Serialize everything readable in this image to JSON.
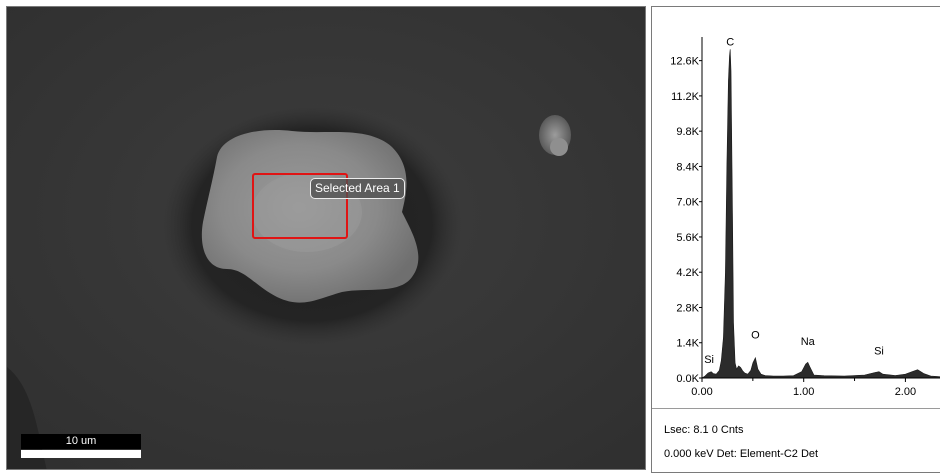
{
  "sem_image": {
    "selection_label": "Selected Area 1",
    "scale_label": "10 um",
    "colors": {
      "selection_box": "#e01414",
      "background": "#3a3a3a",
      "particle": "#8c8c8c"
    }
  },
  "spectrum": {
    "footer": {
      "line1": "Lsec: 8.1 0 Cnts",
      "line2": "0.000 keV Det: Element-C2 Det"
    },
    "colors": {
      "fill": "#2b2b2b",
      "axis": "#000000",
      "footer_border": "#9a9a9a"
    }
  },
  "chart_data": {
    "type": "area",
    "title": "",
    "xlabel": "",
    "ylabel": "",
    "xlim": [
      0.0,
      2.35
    ],
    "ylim": [
      0,
      13300
    ],
    "x_ticks": [
      0.0,
      1.0,
      2.0
    ],
    "x_tick_labels": [
      "0.00",
      "1.00",
      "2.00"
    ],
    "y_ticks": [
      0,
      1400,
      2800,
      4200,
      5600,
      7000,
      8400,
      9800,
      11200,
      12600
    ],
    "y_tick_labels": [
      "0.0K",
      "1.4K",
      "2.8K",
      "4.2K",
      "5.6K",
      "7.0K",
      "8.4K",
      "9.8K",
      "11.2K",
      "12.6K"
    ],
    "peak_labels": [
      {
        "text": "C",
        "x": 0.277,
        "y": 13050
      },
      {
        "text": "O",
        "x": 0.525,
        "y": 1400
      },
      {
        "text": "Na",
        "x": 1.04,
        "y": 1150
      },
      {
        "text": "Si",
        "x": 1.74,
        "y": 780
      },
      {
        "text": "Si",
        "x": 0.07,
        "y": 430
      }
    ],
    "series": [
      {
        "values_x": [
          0.0,
          0.03,
          0.06,
          0.09,
          0.11,
          0.14,
          0.17,
          0.19,
          0.21,
          0.23,
          0.245,
          0.26,
          0.27,
          0.277,
          0.285,
          0.3,
          0.31,
          0.325,
          0.34,
          0.36,
          0.38,
          0.4,
          0.42,
          0.45,
          0.48,
          0.5,
          0.525,
          0.55,
          0.58,
          0.62,
          0.7,
          0.8,
          0.9,
          0.98,
          1.02,
          1.04,
          1.06,
          1.1,
          1.2,
          1.4,
          1.6,
          1.7,
          1.74,
          1.78,
          1.9,
          2.0,
          2.07,
          2.12,
          2.18,
          2.25,
          2.35
        ],
        "values_y": [
          0,
          80,
          200,
          250,
          180,
          150,
          300,
          700,
          1600,
          4200,
          8500,
          11800,
          12800,
          13050,
          12200,
          6500,
          2200,
          600,
          350,
          480,
          420,
          280,
          200,
          150,
          300,
          600,
          800,
          350,
          150,
          100,
          80,
          80,
          90,
          250,
          550,
          620,
          450,
          120,
          90,
          80,
          120,
          220,
          250,
          150,
          100,
          150,
          260,
          330,
          180,
          80,
          50
        ]
      }
    ]
  }
}
